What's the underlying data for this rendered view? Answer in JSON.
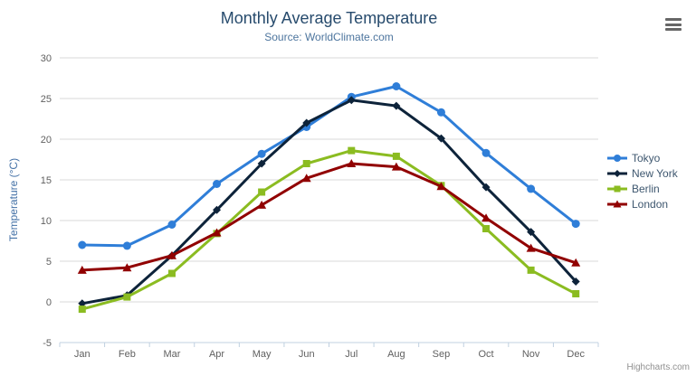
{
  "chart_data": {
    "type": "line",
    "title": "Monthly Average Temperature",
    "subtitle": "Source: WorldClimate.com",
    "categories": [
      "Jan",
      "Feb",
      "Mar",
      "Apr",
      "May",
      "Jun",
      "Jul",
      "Aug",
      "Sep",
      "Oct",
      "Nov",
      "Dec"
    ],
    "xlabel": "",
    "ylabel": "Temperature (°C)",
    "ylim": [
      -5,
      30
    ],
    "ytick_interval": 5,
    "grid": true,
    "legend_position": "right",
    "series": [
      {
        "name": "Tokyo",
        "color": "#2f7ed8",
        "marker": "circle",
        "values": [
          7.0,
          6.9,
          9.5,
          14.5,
          18.2,
          21.5,
          25.2,
          26.5,
          23.3,
          18.3,
          13.9,
          9.6
        ]
      },
      {
        "name": "New York",
        "color": "#0d233a",
        "marker": "diamond",
        "values": [
          -0.2,
          0.8,
          5.7,
          11.3,
          17.0,
          22.0,
          24.8,
          24.1,
          20.1,
          14.1,
          8.6,
          2.5
        ]
      },
      {
        "name": "Berlin",
        "color": "#8bbc21",
        "marker": "square",
        "values": [
          -0.9,
          0.6,
          3.5,
          8.4,
          13.5,
          17.0,
          18.6,
          17.9,
          14.3,
          9.0,
          3.9,
          1.0
        ]
      },
      {
        "name": "London",
        "color": "#910000",
        "marker": "triangle",
        "values": [
          3.9,
          4.2,
          5.7,
          8.5,
          11.9,
          15.2,
          17.0,
          16.6,
          14.2,
          10.3,
          6.6,
          4.8
        ]
      }
    ],
    "style": {
      "grid_color": "#D8D8D8",
      "axis_line_color": "#C0D0E0",
      "tick_label_color": "#606060",
      "title_color": "#274b6d",
      "subtitle_color": "#4d759e",
      "ylabel_color": "#4572A7",
      "legend_text_color": "#3E576F",
      "menu_icon_color": "#666666",
      "credits_color": "#909090"
    }
  },
  "menu": {
    "icon": "hamburger-icon"
  },
  "credits": {
    "label": "Highcharts.com"
  }
}
